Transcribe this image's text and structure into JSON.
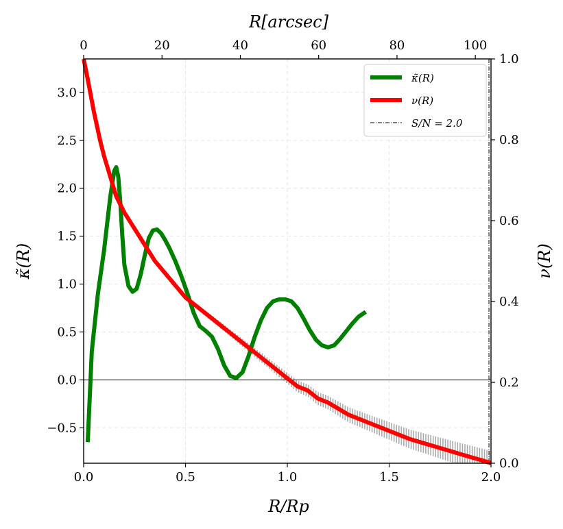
{
  "chart_data": {
    "type": "line",
    "title": "",
    "xlabel": "R/R_p",
    "xlabel_text": "R/Rp",
    "ylabel_left": "κ̃(R)",
    "ylabel_right": "ν(R)",
    "xlabel_top": "R[arcsec]",
    "xlim": [
      0,
      2.0
    ],
    "ylim_left": [
      -0.87,
      3.35
    ],
    "ylim_right": [
      0.0,
      1.0
    ],
    "top_xlim": [
      0,
      104
    ],
    "grid": true,
    "legend_position": "top-right",
    "x_ticks": [
      "0.0",
      "0.5",
      "1.0",
      "1.5",
      "2.0"
    ],
    "y_left_ticks": [
      "−0.5",
      "0.0",
      "0.5",
      "1.0",
      "1.5",
      "2.0",
      "2.5",
      "3.0"
    ],
    "y_right_ticks": [
      "0.0",
      "0.2",
      "0.4",
      "0.6",
      "0.8",
      "1.0"
    ],
    "top_ticks": [
      "0",
      "20",
      "40",
      "60",
      "80",
      "100"
    ],
    "zero_line": 0.0,
    "sn_line_x": 1.99,
    "series": [
      {
        "name": "κ̃(R)",
        "legend_label": "κ̃(R)",
        "axis": "left",
        "color": "#008000",
        "x": [
          0.02,
          0.04,
          0.07,
          0.1,
          0.13,
          0.15,
          0.16,
          0.17,
          0.18,
          0.19,
          0.2,
          0.22,
          0.24,
          0.26,
          0.28,
          0.3,
          0.32,
          0.34,
          0.36,
          0.38,
          0.4,
          0.42,
          0.45,
          0.48,
          0.51,
          0.54,
          0.57,
          0.6,
          0.63,
          0.66,
          0.69,
          0.72,
          0.75,
          0.78,
          0.81,
          0.84,
          0.87,
          0.9,
          0.93,
          0.96,
          0.99,
          1.02,
          1.05,
          1.08,
          1.11,
          1.14,
          1.17,
          1.2,
          1.23,
          1.26,
          1.29,
          1.32,
          1.35,
          1.385
        ],
        "values": [
          -0.65,
          0.3,
          0.9,
          1.35,
          1.9,
          2.18,
          2.22,
          2.12,
          1.85,
          1.5,
          1.2,
          0.98,
          0.92,
          0.95,
          1.1,
          1.3,
          1.48,
          1.56,
          1.57,
          1.53,
          1.46,
          1.38,
          1.24,
          1.08,
          0.9,
          0.7,
          0.56,
          0.51,
          0.45,
          0.32,
          0.15,
          0.04,
          0.02,
          0.08,
          0.25,
          0.45,
          0.62,
          0.75,
          0.82,
          0.84,
          0.84,
          0.82,
          0.75,
          0.64,
          0.52,
          0.42,
          0.36,
          0.34,
          0.36,
          0.43,
          0.51,
          0.59,
          0.66,
          0.71
        ]
      },
      {
        "name": "ν(R)",
        "legend_label": "ν(R)",
        "axis": "right",
        "color": "#ff0000",
        "x": [
          0.0,
          0.02,
          0.05,
          0.08,
          0.1,
          0.13,
          0.16,
          0.2,
          0.25,
          0.3,
          0.35,
          0.4,
          0.45,
          0.5,
          0.55,
          0.6,
          0.65,
          0.7,
          0.75,
          0.8,
          0.85,
          0.9,
          0.95,
          1.0,
          1.05,
          1.1,
          1.15,
          1.2,
          1.3,
          1.4,
          1.5,
          1.6,
          1.7,
          1.8,
          1.9,
          1.95,
          2.0
        ],
        "values": [
          1.0,
          0.95,
          0.87,
          0.8,
          0.76,
          0.71,
          0.66,
          0.62,
          0.58,
          0.54,
          0.5,
          0.47,
          0.44,
          0.41,
          0.39,
          0.37,
          0.35,
          0.33,
          0.31,
          0.29,
          0.27,
          0.25,
          0.23,
          0.21,
          0.19,
          0.18,
          0.16,
          0.15,
          0.12,
          0.1,
          0.08,
          0.06,
          0.045,
          0.03,
          0.015,
          0.008,
          0.0
        ]
      }
    ],
    "sn_legend_label": "S/N = 2.0",
    "errorbars": {
      "axis": "right",
      "color": "#aaaaaa",
      "x_start": 0.42,
      "x_end": 2.0,
      "step": 0.012,
      "half_width_start": 0.004,
      "half_width_end": 0.03
    }
  }
}
